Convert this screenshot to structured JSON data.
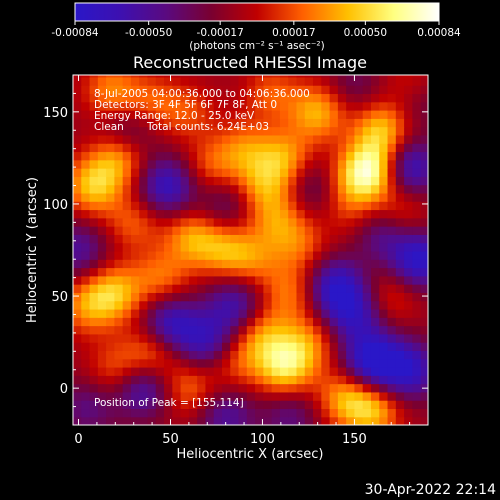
{
  "chart_data": {
    "type": "heatmap",
    "title": "Reconstructed RHESSI Image",
    "xlabel": "Heliocentric X (arcsec)",
    "ylabel": "Heliocentric Y (arcsec)",
    "xlim": [
      -3,
      190
    ],
    "ylim": [
      -20,
      170
    ],
    "x_ticks": [
      0,
      50,
      100,
      150
    ],
    "y_ticks": [
      0,
      50,
      100,
      150
    ],
    "x_tick_labels": [
      "0",
      "50",
      "100",
      "150"
    ],
    "y_tick_labels": [
      "0",
      "50",
      "100",
      "150"
    ],
    "annotations": [
      "8-Jul-2005 04:00:36.000 to 04:06:36.000",
      "Detectors: 3F 4F 5F 6F 7F 8F, Att 0",
      "Energy Range: 12.0 - 25.0 keV",
      "Clean",
      "Total counts: 6.24E+03"
    ],
    "peak_label": "Position of Peak = [155,114]",
    "peak": [
      155,
      114
    ],
    "colorbar": {
      "min": -0.00084,
      "max": 0.00084,
      "tick_values": [
        -0.00084,
        -0.0005,
        -0.00017,
        0.00017,
        0.0005,
        0.00084
      ],
      "tick_labels": [
        "-0.00084",
        "-0.00050",
        "-0.00017",
        "0.00017",
        "0.00050",
        "0.00084"
      ],
      "label": "(photons cm⁻² s⁻¹ asec⁻²)",
      "colormap": "rainbow-dark to yellow-white",
      "color_stops": [
        "#2a17c8",
        "#3d10b0",
        "#5a0a80",
        "#7a0030",
        "#c00000",
        "#ff6000",
        "#ffc000",
        "#ffff80",
        "#ffffff"
      ]
    },
    "blobs": [
      {
        "x": 18,
        "y": 162,
        "v": 0.0004
      },
      {
        "x": 40,
        "y": 155,
        "v": 0.0003
      },
      {
        "x": 8,
        "y": 110,
        "v": 0.00055
      },
      {
        "x": 22,
        "y": 125,
        "v": 0.00045
      },
      {
        "x": 60,
        "y": 150,
        "v": 0.00025
      },
      {
        "x": 72,
        "y": 120,
        "v": 0.0003
      },
      {
        "x": 90,
        "y": 130,
        "v": 0.00035
      },
      {
        "x": 105,
        "y": 160,
        "v": 0.0003
      },
      {
        "x": 112,
        "y": 125,
        "v": 0.00045
      },
      {
        "x": 100,
        "y": 110,
        "v": 0.0004
      },
      {
        "x": 130,
        "y": 150,
        "v": 0.0005
      },
      {
        "x": 158,
        "y": 118,
        "v": 0.00084
      },
      {
        "x": 165,
        "y": 140,
        "v": 0.00055
      },
      {
        "x": 175,
        "y": 95,
        "v": 0.0003
      },
      {
        "x": 30,
        "y": 90,
        "v": 0.0003
      },
      {
        "x": 62,
        "y": 82,
        "v": 0.00045
      },
      {
        "x": 80,
        "y": 75,
        "v": 0.0004
      },
      {
        "x": 95,
        "y": 70,
        "v": 0.0003
      },
      {
        "x": 108,
        "y": 92,
        "v": 0.00035
      },
      {
        "x": 120,
        "y": 78,
        "v": 0.0003
      },
      {
        "x": 45,
        "y": 60,
        "v": 0.00035
      },
      {
        "x": 20,
        "y": 52,
        "v": 0.0005
      },
      {
        "x": 5,
        "y": 45,
        "v": 0.0004
      },
      {
        "x": 115,
        "y": 52,
        "v": 0.00035
      },
      {
        "x": 170,
        "y": 50,
        "v": 0.00025
      },
      {
        "x": 100,
        "y": 30,
        "v": 0.0004
      },
      {
        "x": 112,
        "y": 12,
        "v": 0.00065
      },
      {
        "x": 125,
        "y": 25,
        "v": 0.00035
      },
      {
        "x": 40,
        "y": 20,
        "v": 0.0004
      },
      {
        "x": 20,
        "y": 10,
        "v": 0.0003
      },
      {
        "x": 145,
        "y": -5,
        "v": 0.00045
      },
      {
        "x": 160,
        "y": -12,
        "v": 0.0005
      },
      {
        "x": 60,
        "y": 0,
        "v": 0.00035
      },
      {
        "x": 85,
        "y": 15,
        "v": 0.0003
      },
      {
        "x": 180,
        "y": 165,
        "v": 0.0002
      },
      {
        "x": 140,
        "y": 110,
        "v": 0.0003
      },
      {
        "x": 150,
        "y": 95,
        "v": 0.0002
      },
      {
        "x": 48,
        "y": 110,
        "v": -0.0006
      },
      {
        "x": 28,
        "y": 140,
        "v": -0.0003
      },
      {
        "x": 180,
        "y": 120,
        "v": -0.0006
      },
      {
        "x": 185,
        "y": 70,
        "v": -0.0007
      },
      {
        "x": 140,
        "y": 55,
        "v": -0.00065
      },
      {
        "x": 150,
        "y": 40,
        "v": -0.0005
      },
      {
        "x": 160,
        "y": 15,
        "v": -0.0008
      },
      {
        "x": 180,
        "y": 10,
        "v": -0.0006
      },
      {
        "x": 50,
        "y": 35,
        "v": -0.0006
      },
      {
        "x": 70,
        "y": 25,
        "v": -0.0005
      },
      {
        "x": 35,
        "y": 0,
        "v": -0.0005
      },
      {
        "x": 85,
        "y": 45,
        "v": -0.0005
      },
      {
        "x": 80,
        "y": 100,
        "v": -0.0003
      },
      {
        "x": 130,
        "y": 110,
        "v": -0.0004
      },
      {
        "x": 165,
        "y": 85,
        "v": -0.0004
      },
      {
        "x": 0,
        "y": 75,
        "v": -0.0004
      },
      {
        "x": 80,
        "y": -15,
        "v": -0.0004
      },
      {
        "x": 5,
        "y": -10,
        "v": -0.0003
      },
      {
        "x": 185,
        "y": 155,
        "v": -0.0002
      },
      {
        "x": 115,
        "y": -15,
        "v": -0.0003
      },
      {
        "x": 150,
        "y": 165,
        "v": -0.0002
      }
    ]
  },
  "timestamp": "30-Apr-2022 22:14"
}
